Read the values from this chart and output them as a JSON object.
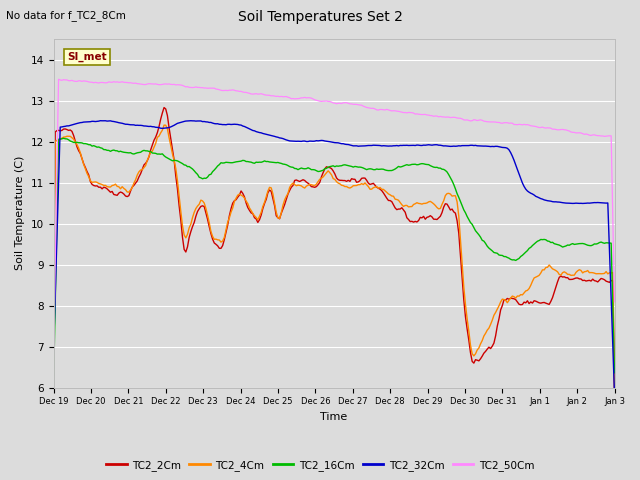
{
  "title": "Soil Temperatures Set 2",
  "subtitle": "No data for f_TC2_8Cm",
  "xlabel": "Time",
  "ylabel": "Soil Temperature (C)",
  "ylim": [
    6.0,
    14.5
  ],
  "yticks": [
    6.0,
    7.0,
    8.0,
    9.0,
    10.0,
    11.0,
    12.0,
    13.0,
    14.0
  ],
  "bg_color": "#dcdcdc",
  "plot_bg_color": "#dcdcdc",
  "fig_bg_color": "#dcdcdc",
  "series_colors": {
    "TC2_2Cm": "#cc0000",
    "TC2_4Cm": "#ff8800",
    "TC2_16Cm": "#00bb00",
    "TC2_32Cm": "#0000cc",
    "TC2_50Cm": "#ff88ff"
  },
  "legend_label": "SI_met",
  "legend_bg": "#ffffcc",
  "legend_border": "#888800",
  "n_points": 336,
  "xtick_labels": [
    "Dec 19",
    "Dec 20",
    "Dec 21",
    "Dec 22",
    "Dec 23",
    "Dec 24",
    "Dec 25",
    "Dec 26",
    "Dec 27",
    "Dec 28",
    "Dec 29",
    "Dec 30",
    "Dec 31",
    "Jan 1",
    "Jan 2",
    "Jan 3"
  ]
}
